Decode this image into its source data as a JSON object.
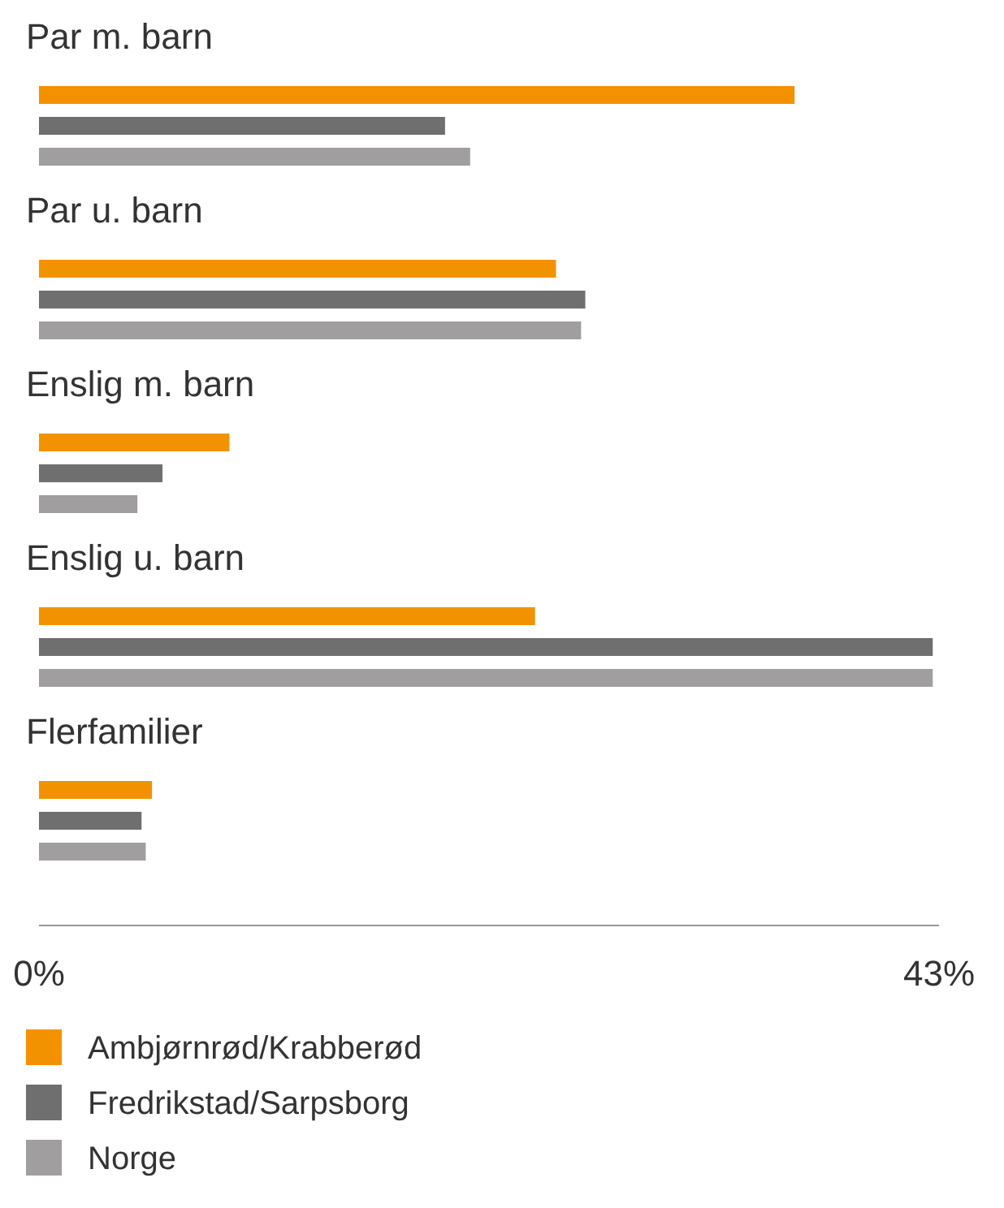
{
  "chart_data": {
    "type": "bar",
    "orientation": "horizontal",
    "categories": [
      "Par m. barn",
      "Par u. barn",
      "Enslig m. barn",
      "Enslig u. barn",
      "Flerfamilier"
    ],
    "series": [
      {
        "name": "Ambjørnrød/Krabberød",
        "color": "#f39200",
        "values": [
          36.1,
          24.7,
          9.1,
          23.7,
          5.4
        ]
      },
      {
        "name": "Fredrikstad/Sarpsborg",
        "color": "#6f6f6f",
        "values": [
          19.4,
          26.1,
          5.9,
          42.7,
          4.9
        ]
      },
      {
        "name": "Norge",
        "color": "#a09e9e",
        "values": [
          20.6,
          25.9,
          4.7,
          42.7,
          5.1
        ]
      }
    ],
    "xlim": [
      0,
      43
    ],
    "xticks": [
      {
        "value": 0,
        "label": "0%"
      },
      {
        "value": 43,
        "label": "43%"
      }
    ],
    "legend": "bottom",
    "grid": false
  }
}
